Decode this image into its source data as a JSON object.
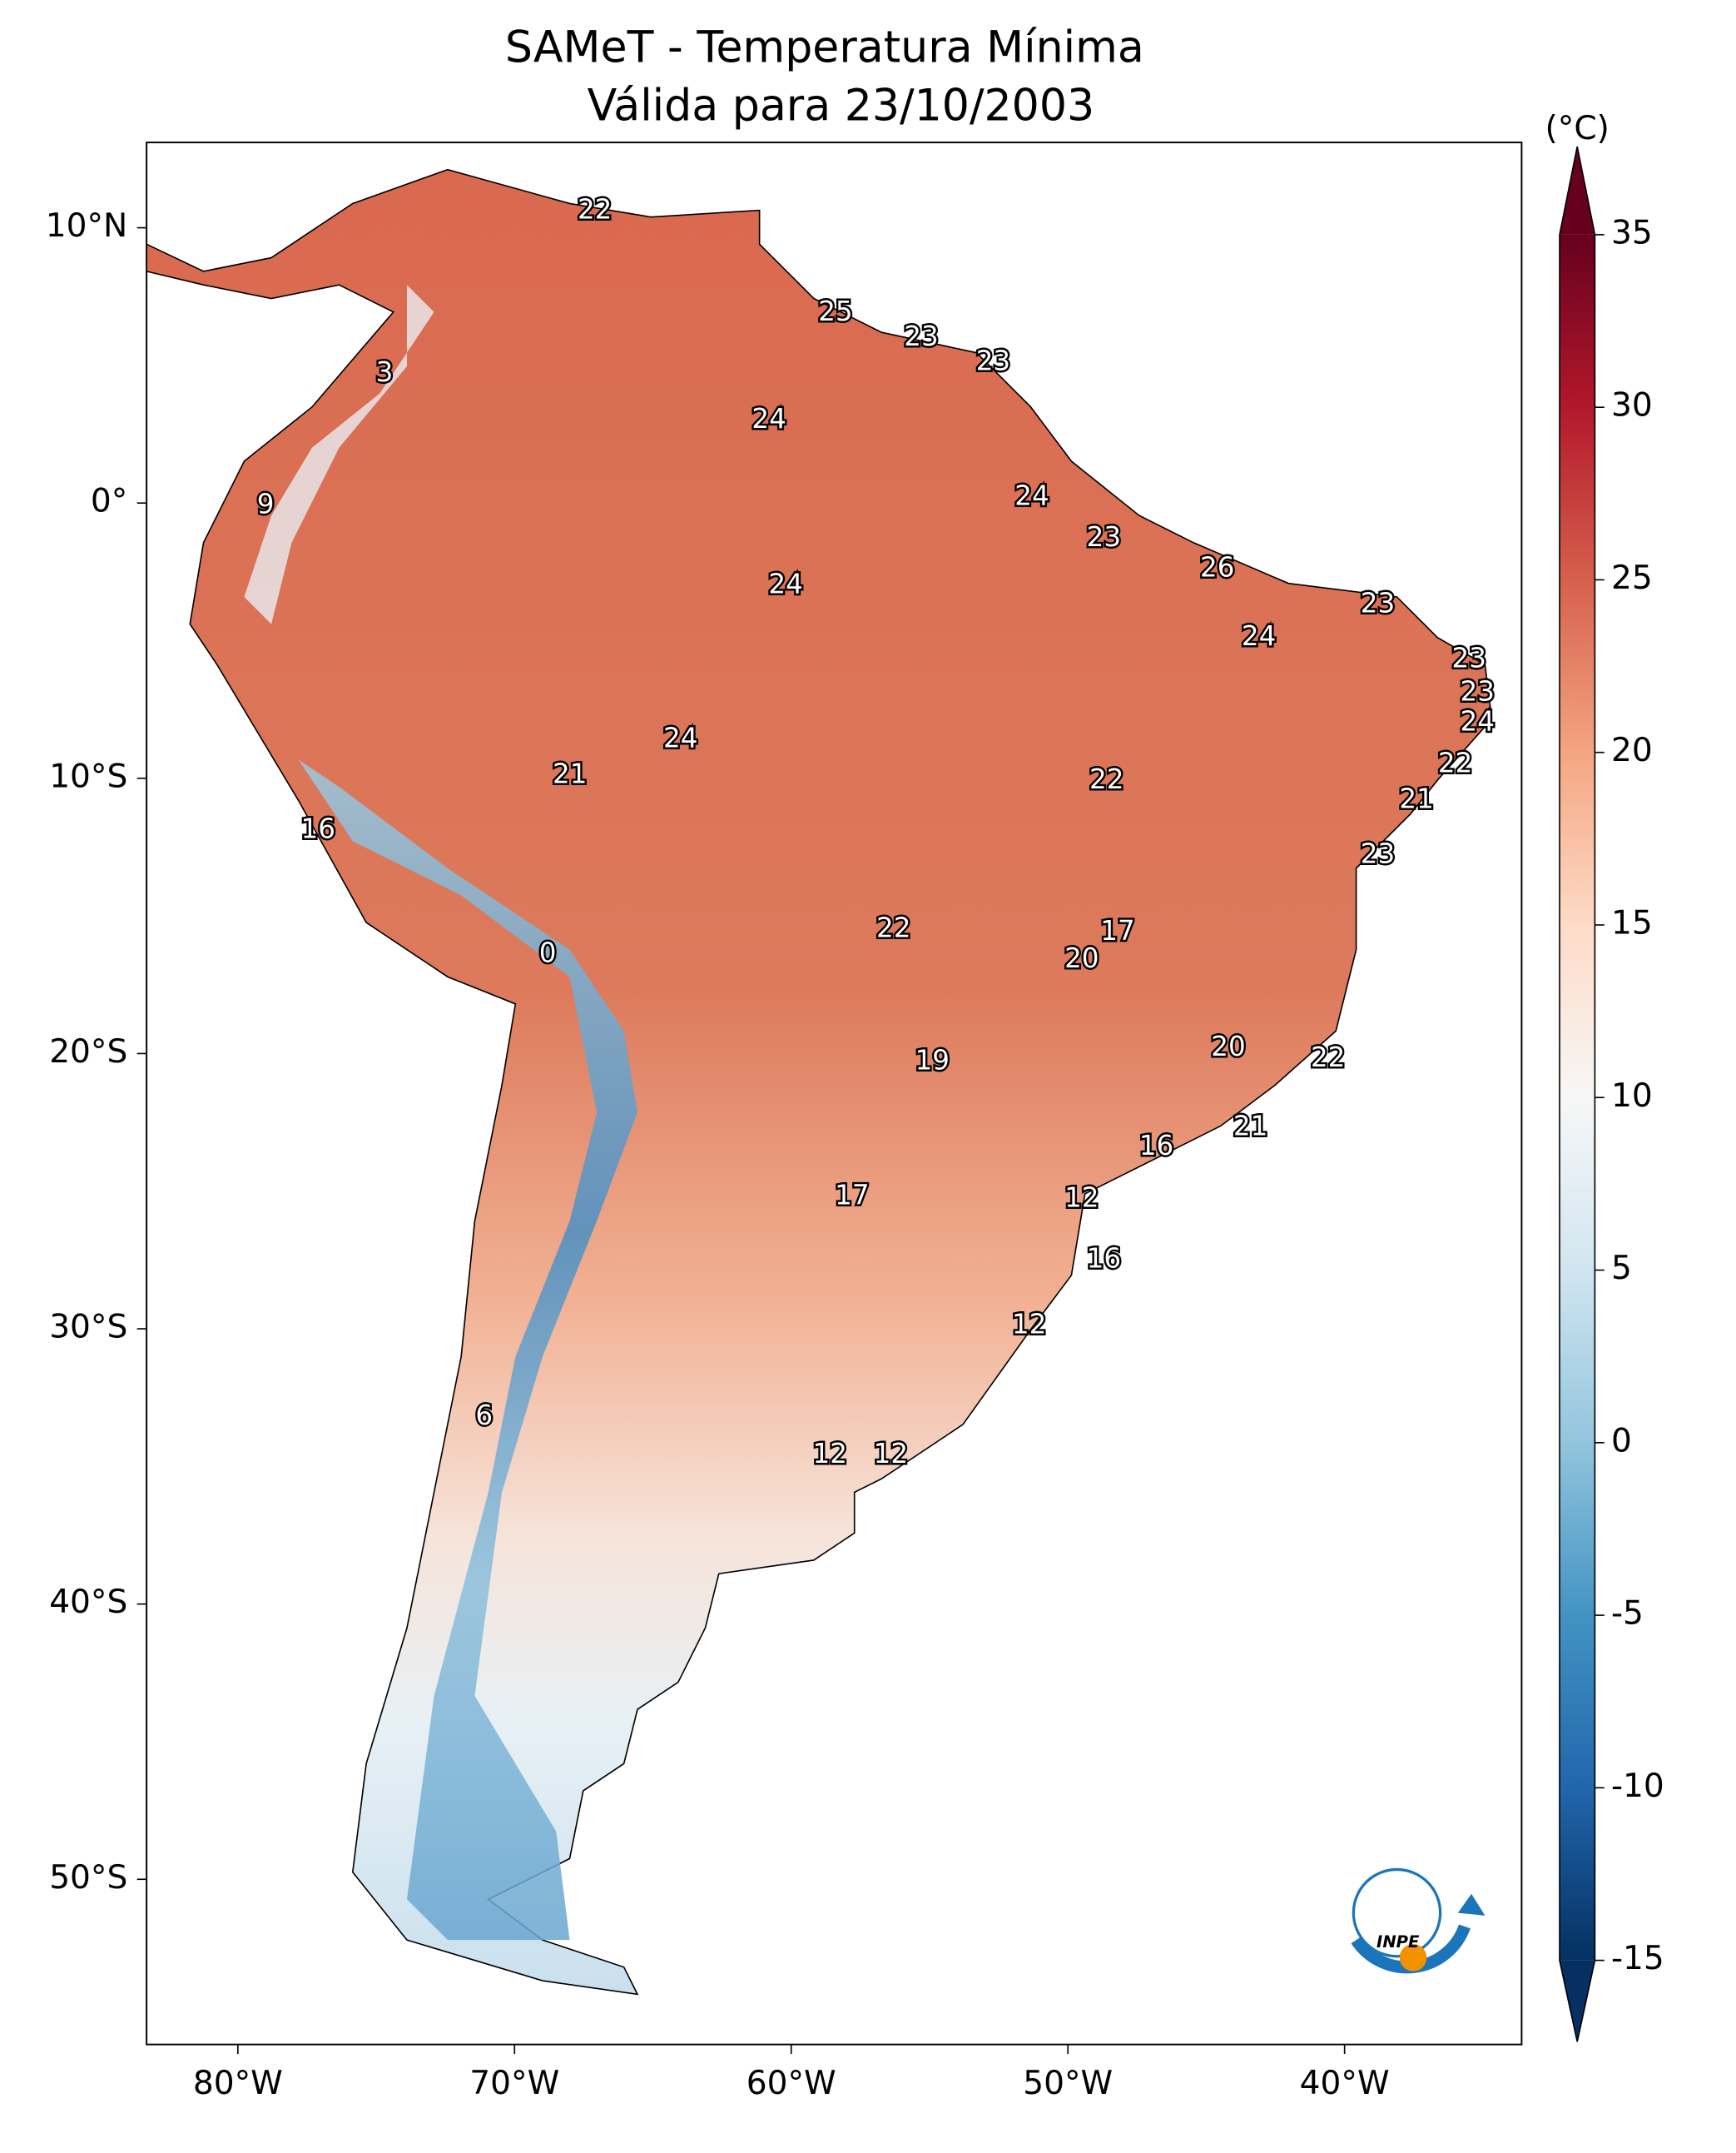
{
  "chart_data": {
    "type": "map",
    "title": "SAMeT - Temperatura Mínima",
    "subtitle": "Válida para 23/10/2003",
    "xlim": [
      -83.3,
      -33.6
    ],
    "ylim": [
      -56.0,
      13.1
    ],
    "xticks": [
      {
        "value": -80,
        "label": "80°W"
      },
      {
        "value": -70,
        "label": "70°W"
      },
      {
        "value": -60,
        "label": "60°W"
      },
      {
        "value": -50,
        "label": "50°W"
      },
      {
        "value": -40,
        "label": "40°W"
      }
    ],
    "yticks": [
      {
        "value": 10,
        "label": "10°N"
      },
      {
        "value": 0,
        "label": "0°"
      },
      {
        "value": -10,
        "label": "10°S"
      },
      {
        "value": -20,
        "label": "20°S"
      },
      {
        "value": -30,
        "label": "30°S"
      },
      {
        "value": -40,
        "label": "40°S"
      },
      {
        "value": -50,
        "label": "50°S"
      }
    ],
    "colorbar": {
      "label": "(°C)",
      "lim": [
        -15,
        35
      ],
      "ticks": [
        -15,
        -10,
        -5,
        0,
        5,
        10,
        15,
        20,
        25,
        30,
        35
      ],
      "colors": [
        "#053061",
        "#2166ac",
        "#4393c3",
        "#92c5de",
        "#d1e5f0",
        "#f7f7f7",
        "#fddbc7",
        "#f4a582",
        "#d6604d",
        "#b2182b",
        "#67001f"
      ]
    },
    "stations": {
      "lon": [
        -67.1,
        -74.7,
        -58.4,
        -55.3,
        -52.7,
        -60.8,
        -79.0,
        -51.3,
        -48.7,
        -44.6,
        -38.8,
        -60.2,
        -43.1,
        -35.5,
        -35.2,
        -35.2,
        -64.0,
        -36.0,
        -48.6,
        -68.0,
        -37.4,
        -77.1,
        -38.8,
        -56.3,
        -48.2,
        -49.5,
        -68.8,
        -44.2,
        -40.6,
        -54.9,
        -43.4,
        -46.8,
        -57.8,
        -49.5,
        -48.7,
        -51.4,
        -71.1,
        -58.6,
        -56.4
      ],
      "lat": [
        10.6,
        4.7,
        6.9,
        6.0,
        5.1,
        3.0,
        -0.1,
        0.2,
        -1.3,
        -2.4,
        -3.7,
        -3.0,
        -4.9,
        -5.7,
        -6.9,
        -8.0,
        -8.6,
        -9.5,
        -10.1,
        -9.9,
        -10.8,
        -11.9,
        -12.8,
        -15.5,
        -15.6,
        -16.6,
        -16.4,
        -19.8,
        -20.2,
        -20.3,
        -22.7,
        -23.4,
        -25.2,
        -25.3,
        -27.5,
        -29.9,
        -33.2,
        -34.6,
        -34.6
      ],
      "values": [
        22,
        3,
        25,
        23,
        23,
        24,
        9,
        24,
        23,
        26,
        23,
        24,
        24,
        23,
        23,
        24,
        24,
        22,
        22,
        21,
        21,
        16,
        23,
        22,
        17,
        20,
        0,
        20,
        22,
        19,
        21,
        16,
        17,
        12,
        16,
        12,
        6,
        12,
        12
      ]
    }
  }
}
